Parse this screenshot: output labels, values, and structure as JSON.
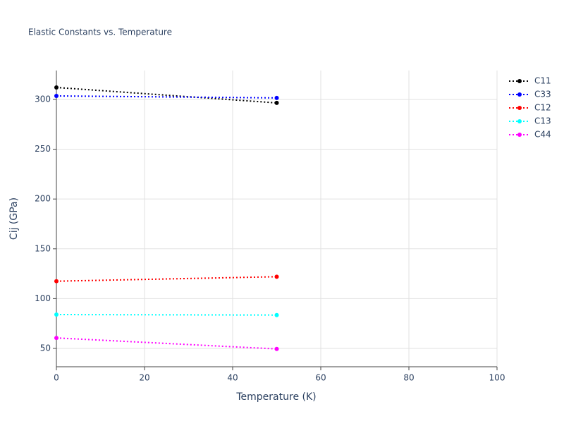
{
  "chart_data": {
    "type": "line",
    "title": "Elastic Constants vs. Temperature",
    "x_label": "Temperature (K)",
    "y_label": "Cij (GPa)",
    "x": [
      0,
      50
    ],
    "series": [
      {
        "name": "C11",
        "color": "#000000",
        "values": [
          312,
          296.5
        ]
      },
      {
        "name": "C33",
        "color": "#0000ff",
        "values": [
          303.5,
          301.5
        ]
      },
      {
        "name": "C12",
        "color": "#ff0000",
        "values": [
          117.5,
          122
        ]
      },
      {
        "name": "C13",
        "color": "#00ffff",
        "values": [
          84,
          83.5
        ]
      },
      {
        "name": "C44",
        "color": "#ff00ff",
        "values": [
          60.5,
          49.5
        ]
      }
    ],
    "xlim": [
      0,
      100
    ],
    "xticks": [
      0,
      20,
      40,
      60,
      80,
      100
    ],
    "ylim": [
      31.6,
      329
    ],
    "yticks": [
      50,
      100,
      150,
      200,
      250,
      300
    ],
    "grid": true,
    "legend": "right"
  }
}
